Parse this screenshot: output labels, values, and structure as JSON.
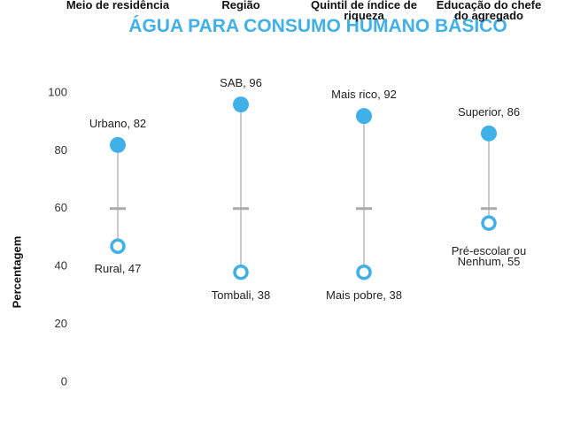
{
  "chart_data": {
    "type": "dumbbell",
    "title": "ÁGUA PARA CONSUMO HUMANO BÁSICO",
    "y_label": "Percentagem",
    "categories": [
      "Meio de residência",
      "Região",
      "Quintil de índice de riqueza",
      "Educação do chefe do agregado"
    ],
    "series": [
      {
        "color": "#3fb0e8",
        "filled": true,
        "values": [
          82,
          96,
          92,
          86
        ],
        "value_labels": [
          "Urbano, 82",
          "SAB, 96",
          "Mais rico, 92",
          "Superior, 86"
        ]
      },
      {
        "color": "#3fb0e8",
        "filled": false,
        "values": [
          47,
          38,
          38,
          55
        ],
        "value_labels": [
          "Rural, 47",
          "Tombali, 38",
          "Mais pobre, 38",
          "Pré-escolar ou Nenhum, 55"
        ]
      }
    ],
    "reference_values": [
      60,
      60,
      60,
      60
    ],
    "ylim": [
      0,
      100
    ],
    "yticks": [
      0,
      20,
      40,
      60,
      80,
      100
    ]
  }
}
